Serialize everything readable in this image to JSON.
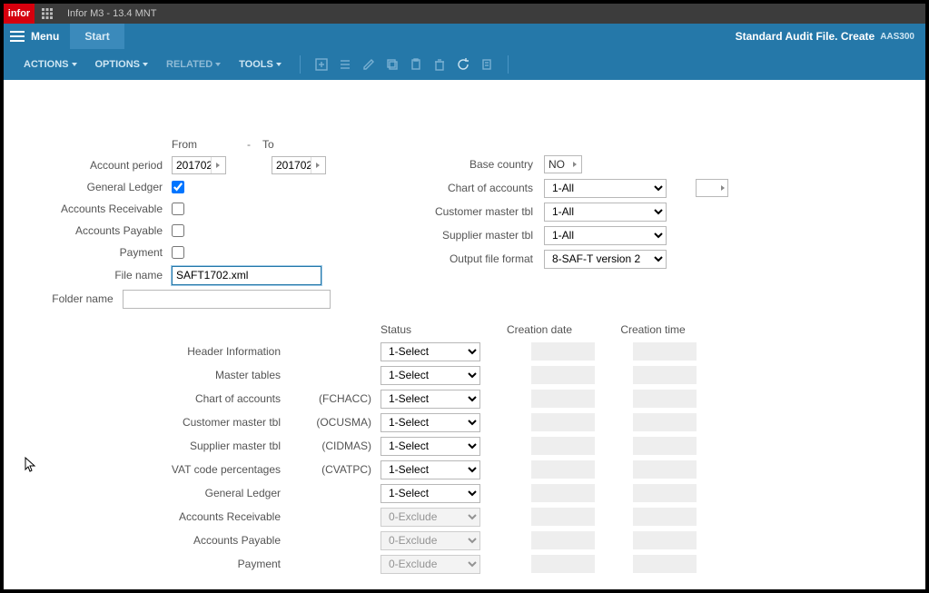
{
  "titlebar": {
    "product": "infor",
    "title": "Infor M3 - 13.4 MNT"
  },
  "menubar": {
    "menu": "Menu",
    "start": "Start",
    "page_title": "Standard Audit File. Create",
    "page_code": "AAS300"
  },
  "toolbar": {
    "actions": "ACTIONS",
    "options": "OPTIONS",
    "related": "RELATED",
    "tools": "TOOLS"
  },
  "headers": {
    "from": "From",
    "to": "To"
  },
  "labels": {
    "account_period": "Account period",
    "general_ledger": "General Ledger",
    "accounts_receivable": "Accounts Receivable",
    "accounts_payable": "Accounts Payable",
    "payment": "Payment",
    "file_name": "File name",
    "folder_name": "Folder name",
    "base_country": "Base country",
    "chart_of_accounts": "Chart of accounts",
    "customer_master_tbl": "Customer master tbl",
    "supplier_master_tbl": "Supplier master tbl",
    "output_file_format": "Output file format"
  },
  "values": {
    "period_from": "201702",
    "period_to": "201702",
    "general_ledger_checked": true,
    "accounts_receivable_checked": false,
    "accounts_payable_checked": false,
    "payment_checked": false,
    "file_name": "SAFT1702.xml",
    "folder_name": "",
    "base_country": "NO",
    "chart_of_accounts": "1-All",
    "customer_master_tbl": "1-All",
    "supplier_master_tbl": "1-All",
    "output_file_format": "8-SAF-T version 2"
  },
  "status": {
    "head": {
      "status": "Status",
      "creation_date": "Creation date",
      "creation_time": "Creation time"
    },
    "rows": [
      {
        "label": "Header Information",
        "code": "",
        "value": "1-Select",
        "disabled": false
      },
      {
        "label": "Master tables",
        "code": "",
        "value": "1-Select",
        "disabled": false
      },
      {
        "label": "Chart of accounts",
        "code": "(FCHACC)",
        "value": "1-Select",
        "disabled": false
      },
      {
        "label": "Customer master tbl",
        "code": "(OCUSMA)",
        "value": "1-Select",
        "disabled": false
      },
      {
        "label": "Supplier master tbl",
        "code": "(CIDMAS)",
        "value": "1-Select",
        "disabled": false
      },
      {
        "label": "VAT code percentages",
        "code": "(CVATPC)",
        "value": "1-Select",
        "disabled": false
      },
      {
        "label": "General Ledger",
        "code": "",
        "value": "1-Select",
        "disabled": false
      },
      {
        "label": "Accounts Receivable",
        "code": "",
        "value": "0-Exclude",
        "disabled": true
      },
      {
        "label": "Accounts Payable",
        "code": "",
        "value": "0-Exclude",
        "disabled": true
      },
      {
        "label": "Payment",
        "code": "",
        "value": "0-Exclude",
        "disabled": true
      }
    ]
  }
}
